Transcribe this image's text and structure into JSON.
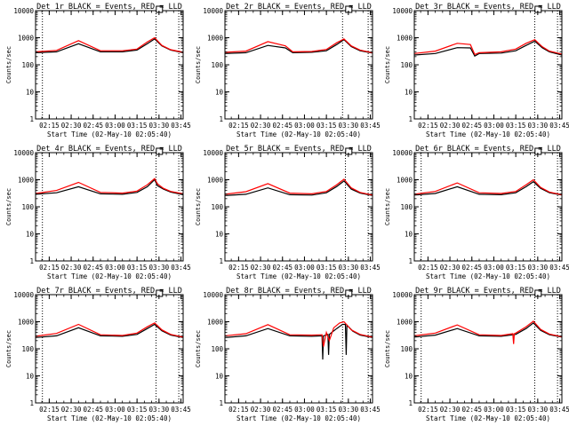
{
  "figure": {
    "background": "#ffffff",
    "colors": {
      "events": "#000000",
      "lld": "#ff0000",
      "axes": "#000000"
    }
  },
  "chart_data": [
    {
      "type": "line",
      "title": "Det 1r BLACK = Events, RED = LLD",
      "xlabel": "Start Time (02-May-10 02:05:40)",
      "ylabel": "Counts/sec",
      "yscale": "log",
      "ylim": [
        1,
        10000
      ],
      "xlim": [
        "02:05:40",
        "03:46:30"
      ],
      "xticks": [
        "02:15",
        "02:30",
        "02:45",
        "03:00",
        "03:15",
        "03:30",
        "03:45"
      ],
      "yticks": [
        "1",
        "10",
        "100",
        "1000",
        "10000"
      ],
      "vlines": [
        "02:10:20",
        "03:28:00",
        "03:43:30"
      ],
      "series": [
        {
          "name": "Events",
          "color": "#000000",
          "x": [
            "02:05:40",
            "02:20:00",
            "02:35:00",
            "02:50:00",
            "03:05:00",
            "03:15:00",
            "03:22:00",
            "03:27:00",
            "03:32:00",
            "03:38:00",
            "03:46:30"
          ],
          "y": [
            280,
            300,
            600,
            300,
            300,
            350,
            600,
            900,
            500,
            350,
            280
          ]
        },
        {
          "name": "LLD",
          "color": "#ff0000",
          "x": [
            "02:05:40",
            "02:20:00",
            "02:35:00",
            "02:50:00",
            "03:05:00",
            "03:15:00",
            "03:22:00",
            "03:27:00",
            "03:32:00",
            "03:38:00",
            "03:46:30"
          ],
          "y": [
            300,
            340,
            780,
            330,
            330,
            380,
            700,
            1000,
            520,
            360,
            290
          ]
        }
      ]
    },
    {
      "type": "line",
      "title": "Det 2r BLACK = Events, RED = LLD",
      "xlabel": "Start Time (02-May-10 02:05:40)",
      "ylabel": "Counts/sec",
      "yscale": "log",
      "ylim": [
        1,
        10000
      ],
      "xlim": [
        "02:05:40",
        "03:46:30"
      ],
      "xticks": [
        "02:15",
        "02:30",
        "02:45",
        "03:00",
        "03:15",
        "03:30",
        "03:45"
      ],
      "yticks": [
        "1",
        "10",
        "100",
        "1000",
        "10000"
      ],
      "vlines": [
        "03:26:00",
        "03:43:30"
      ],
      "series": [
        {
          "name": "Events",
          "color": "#000000",
          "x": [
            "02:05:40",
            "02:20:00",
            "02:35:00",
            "02:47:00",
            "02:52:00",
            "03:05:00",
            "03:15:00",
            "03:22:00",
            "03:27:00",
            "03:32:00",
            "03:38:00",
            "03:46:30"
          ],
          "y": [
            260,
            280,
            520,
            420,
            280,
            290,
            330,
            560,
            850,
            470,
            330,
            270
          ]
        },
        {
          "name": "LLD",
          "color": "#ff0000",
          "x": [
            "02:05:40",
            "02:20:00",
            "02:35:00",
            "02:47:00",
            "02:52:00",
            "03:05:00",
            "03:15:00",
            "03:22:00",
            "03:27:00",
            "03:32:00",
            "03:38:00",
            "03:46:30"
          ],
          "y": [
            290,
            320,
            720,
            500,
            300,
            310,
            370,
            650,
            900,
            500,
            350,
            280
          ]
        }
      ]
    },
    {
      "type": "line",
      "title": "Det 3r BLACK = Events, RED = LLD",
      "xlabel": "Start Time (02-May-10 02:05:40)",
      "ylabel": "Counts/sec",
      "yscale": "log",
      "ylim": [
        1,
        10000
      ],
      "xlim": [
        "02:05:40",
        "03:46:30"
      ],
      "xticks": [
        "02:15",
        "02:30",
        "02:45",
        "03:00",
        "03:15",
        "03:30",
        "03:45"
      ],
      "yticks": [
        "1",
        "10",
        "100",
        "1000",
        "10000"
      ],
      "vlines": [
        "03:28:00",
        "03:43:30"
      ],
      "series": [
        {
          "name": "Events",
          "color": "#000000",
          "x": [
            "02:05:40",
            "02:20:00",
            "02:35:00",
            "02:44:00",
            "02:47:00",
            "02:50:00",
            "03:05:00",
            "03:15:00",
            "03:22:00",
            "03:28:00",
            "03:33:00",
            "03:38:00",
            "03:46:30"
          ],
          "y": [
            230,
            260,
            430,
            420,
            210,
            260,
            270,
            330,
            520,
            750,
            430,
            300,
            230
          ]
        },
        {
          "name": "LLD",
          "color": "#ff0000",
          "x": [
            "02:05:40",
            "02:20:00",
            "02:35:00",
            "02:44:00",
            "02:47:00",
            "02:50:00",
            "03:05:00",
            "03:15:00",
            "03:22:00",
            "03:28:00",
            "03:33:00",
            "03:38:00",
            "03:46:30"
          ],
          "y": [
            260,
            320,
            620,
            560,
            240,
            280,
            300,
            380,
            620,
            850,
            470,
            320,
            250
          ]
        }
      ]
    },
    {
      "type": "line",
      "title": "Det 4r BLACK = Events, RED = LLD",
      "xlabel": "Start Time (02-May-10 02:05:40)",
      "ylabel": "Counts/sec",
      "yscale": "log",
      "ylim": [
        1,
        10000
      ],
      "xlim": [
        "02:05:40",
        "03:46:30"
      ],
      "xticks": [
        "02:15",
        "02:30",
        "02:45",
        "03:00",
        "03:15",
        "03:30",
        "03:45"
      ],
      "yticks": [
        "1",
        "10",
        "100",
        "1000",
        "10000"
      ],
      "vlines": [
        "02:10:20",
        "03:28:00",
        "03:43:30"
      ],
      "series": [
        {
          "name": "Events",
          "color": "#000000",
          "x": [
            "02:05:40",
            "02:20:00",
            "02:35:00",
            "02:50:00",
            "03:05:00",
            "03:15:00",
            "03:22:00",
            "03:27:00",
            "03:29:00",
            "03:33:00",
            "03:38:00",
            "03:46:30"
          ],
          "y": [
            290,
            330,
            550,
            300,
            290,
            340,
            550,
            1000,
            600,
            450,
            350,
            280
          ]
        },
        {
          "name": "LLD",
          "color": "#ff0000",
          "x": [
            "02:05:40",
            "02:20:00",
            "02:35:00",
            "02:50:00",
            "03:05:00",
            "03:15:00",
            "03:22:00",
            "03:27:00",
            "03:29:00",
            "03:33:00",
            "03:38:00",
            "03:46:30"
          ],
          "y": [
            310,
            400,
            800,
            340,
            320,
            380,
            650,
            1100,
            700,
            480,
            370,
            300
          ]
        }
      ]
    },
    {
      "type": "line",
      "title": "Det 5r BLACK = Events, RED = LLD",
      "xlabel": "Start Time (02-May-10 02:05:40)",
      "ylabel": "Counts/sec",
      "yscale": "log",
      "ylim": [
        1,
        10000
      ],
      "xlim": [
        "02:05:40",
        "03:46:30"
      ],
      "xticks": [
        "02:15",
        "02:30",
        "02:45",
        "03:00",
        "03:15",
        "03:30",
        "03:45"
      ],
      "yticks": [
        "1",
        "10",
        "100",
        "1000",
        "10000"
      ],
      "vlines": [
        "03:28:00",
        "03:43:30"
      ],
      "series": [
        {
          "name": "Events",
          "color": "#000000",
          "x": [
            "02:05:40",
            "02:20:00",
            "02:35:00",
            "02:50:00",
            "03:05:00",
            "03:15:00",
            "03:22:00",
            "03:27:00",
            "03:32:00",
            "03:38:00",
            "03:46:30"
          ],
          "y": [
            260,
            290,
            500,
            280,
            270,
            330,
            560,
            900,
            450,
            320,
            260
          ]
        },
        {
          "name": "LLD",
          "color": "#ff0000",
          "x": [
            "02:05:40",
            "02:20:00",
            "02:35:00",
            "02:50:00",
            "03:05:00",
            "03:15:00",
            "03:22:00",
            "03:27:00",
            "03:32:00",
            "03:38:00",
            "03:46:30"
          ],
          "y": [
            290,
            360,
            720,
            320,
            300,
            370,
            650,
            1050,
            500,
            340,
            270
          ]
        }
      ]
    },
    {
      "type": "line",
      "title": "Det 6r BLACK = Events, RED = LLD",
      "xlabel": "Start Time (02-May-10 02:05:40)",
      "ylabel": "Counts/sec",
      "yscale": "log",
      "ylim": [
        1,
        10000
      ],
      "xlim": [
        "02:05:40",
        "03:46:30"
      ],
      "xticks": [
        "02:15",
        "02:30",
        "02:45",
        "03:00",
        "03:15",
        "03:30",
        "03:45"
      ],
      "yticks": [
        "1",
        "10",
        "100",
        "1000",
        "10000"
      ],
      "vlines": [
        "02:10:20",
        "03:28:00",
        "03:43:30"
      ],
      "series": [
        {
          "name": "Events",
          "color": "#000000",
          "x": [
            "02:05:40",
            "02:20:00",
            "02:35:00",
            "02:50:00",
            "03:05:00",
            "03:15:00",
            "03:22:00",
            "03:27:00",
            "03:32:00",
            "03:38:00",
            "03:46:30"
          ],
          "y": [
            270,
            310,
            550,
            290,
            280,
            330,
            550,
            850,
            480,
            330,
            270
          ]
        },
        {
          "name": "LLD",
          "color": "#ff0000",
          "x": [
            "02:05:40",
            "02:20:00",
            "02:35:00",
            "02:50:00",
            "03:05:00",
            "03:15:00",
            "03:22:00",
            "03:27:00",
            "03:32:00",
            "03:38:00",
            "03:46:30"
          ],
          "y": [
            290,
            370,
            760,
            330,
            310,
            370,
            650,
            1000,
            520,
            350,
            280
          ]
        }
      ]
    },
    {
      "type": "line",
      "title": "Det 7r BLACK = Events, RED = LLD",
      "xlabel": "Start Time (02-May-10 02:05:40)",
      "ylabel": "Counts/sec",
      "yscale": "log",
      "ylim": [
        1,
        10000
      ],
      "xlim": [
        "02:05:40",
        "03:46:30"
      ],
      "xticks": [
        "02:15",
        "02:30",
        "02:45",
        "03:00",
        "03:15",
        "03:30",
        "03:45"
      ],
      "yticks": [
        "1",
        "10",
        "100",
        "1000",
        "10000"
      ],
      "vlines": [
        "02:10:20",
        "03:28:00",
        "03:43:30"
      ],
      "series": [
        {
          "name": "Events",
          "color": "#000000",
          "x": [
            "02:05:40",
            "02:20:00",
            "02:35:00",
            "02:50:00",
            "03:05:00",
            "03:15:00",
            "03:22:00",
            "03:27:00",
            "03:32:00",
            "03:38:00",
            "03:46:30"
          ],
          "y": [
            260,
            300,
            600,
            300,
            290,
            340,
            560,
            800,
            460,
            320,
            260
          ]
        },
        {
          "name": "LLD",
          "color": "#ff0000",
          "x": [
            "02:05:40",
            "02:20:00",
            "02:35:00",
            "02:50:00",
            "03:05:00",
            "03:15:00",
            "03:22:00",
            "03:27:00",
            "03:32:00",
            "03:38:00",
            "03:46:30"
          ],
          "y": [
            290,
            370,
            800,
            330,
            310,
            380,
            650,
            900,
            500,
            340,
            270
          ]
        }
      ]
    },
    {
      "type": "line",
      "title": "Det 8r BLACK = Events, RED = LLD",
      "xlabel": "Start Time (02-May-10 02:05:40)",
      "ylabel": "Counts/sec",
      "yscale": "log",
      "ylim": [
        1,
        10000
      ],
      "xlim": [
        "02:05:40",
        "03:46:30"
      ],
      "xticks": [
        "02:15",
        "02:30",
        "02:45",
        "03:00",
        "03:15",
        "03:30",
        "03:45"
      ],
      "yticks": [
        "1",
        "10",
        "100",
        "1000",
        "10000"
      ],
      "vlines": [
        "03:26:00",
        "03:43:30"
      ],
      "series": [
        {
          "name": "Events",
          "color": "#000000",
          "x": [
            "02:05:40",
            "02:20:00",
            "02:35:00",
            "02:50:00",
            "03:05:00",
            "03:12:00",
            "03:12:30",
            "03:13:00",
            "03:16:00",
            "03:16:30",
            "03:17:00",
            "03:22:00",
            "03:26:00",
            "03:28:00",
            "03:28:30",
            "03:29:00",
            "03:33:00",
            "03:38:00",
            "03:46:30"
          ],
          "y": [
            260,
            300,
            560,
            300,
            290,
            300,
            40,
            300,
            340,
            60,
            340,
            560,
            800,
            800,
            60,
            750,
            450,
            320,
            260
          ]
        },
        {
          "name": "LLD",
          "color": "#ff0000",
          "x": [
            "02:05:40",
            "02:20:00",
            "02:35:00",
            "02:50:00",
            "03:05:00",
            "03:12:00",
            "03:13:00",
            "03:15:00",
            "03:17:00",
            "03:20:00",
            "03:24:00",
            "03:27:00",
            "03:32:00",
            "03:38:00",
            "03:46:30"
          ],
          "y": [
            300,
            360,
            780,
            330,
            320,
            330,
            120,
            400,
            200,
            600,
            900,
            1000,
            500,
            340,
            270
          ]
        }
      ]
    },
    {
      "type": "line",
      "title": "Det 9r BLACK = Events, RED = LLD",
      "xlabel": "Start Time (02-May-10 02:05:40)",
      "ylabel": "Counts/sec",
      "yscale": "log",
      "ylim": [
        1,
        10000
      ],
      "xlim": [
        "02:05:40",
        "03:46:30"
      ],
      "xticks": [
        "02:15",
        "02:30",
        "02:45",
        "03:00",
        "03:15",
        "03:30",
        "03:45"
      ],
      "yticks": [
        "1",
        "10",
        "100",
        "1000",
        "10000"
      ],
      "vlines": [
        "02:10:20",
        "03:28:00",
        "03:43:30"
      ],
      "series": [
        {
          "name": "Events",
          "color": "#000000",
          "x": [
            "02:05:40",
            "02:20:00",
            "02:35:00",
            "02:50:00",
            "03:05:00",
            "03:15:00",
            "03:22:00",
            "03:27:00",
            "03:32:00",
            "03:38:00",
            "03:46:30"
          ],
          "y": [
            270,
            320,
            560,
            300,
            290,
            340,
            560,
            900,
            480,
            330,
            270
          ]
        },
        {
          "name": "LLD",
          "color": "#ff0000",
          "x": [
            "02:05:40",
            "02:20:00",
            "02:35:00",
            "02:50:00",
            "03:05:00",
            "03:13:00",
            "03:13:30",
            "03:14:00",
            "03:15:00",
            "03:22:00",
            "03:27:00",
            "03:32:00",
            "03:38:00",
            "03:46:30"
          ],
          "y": [
            300,
            380,
            760,
            330,
            310,
            360,
            150,
            360,
            380,
            650,
            1050,
            520,
            350,
            280
          ]
        }
      ]
    }
  ]
}
